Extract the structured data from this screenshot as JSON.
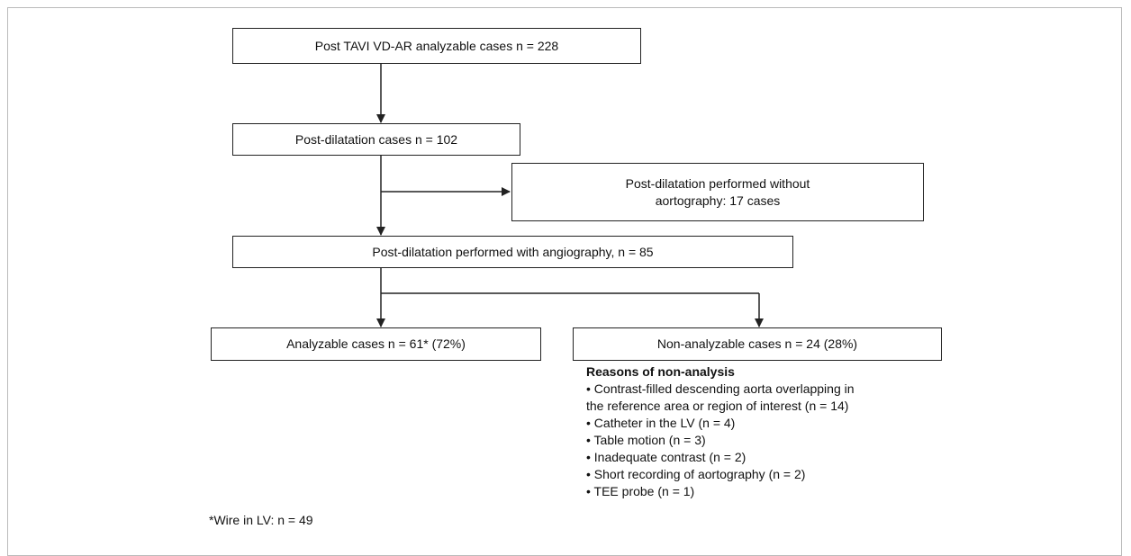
{
  "nodes": [
    {
      "label": "Post TAVI VD-AR analyzable cases n = 228"
    },
    {
      "label": "Post-dilatation cases n = 102"
    },
    {
      "lines": [
        "Post-dilatation performed without",
        "aortography: 17 cases"
      ]
    },
    {
      "label": "Post-dilatation performed with angiography, n = 85"
    },
    {
      "label": "Analyzable cases n = 61* (72%)"
    },
    {
      "label": "Non-analyzable cases n = 24 (28%)"
    }
  ],
  "reasons": {
    "title": "Reasons of non-analysis",
    "items": [
      [
        "• Contrast-filled descending aorta overlapping in",
        "the reference area or region of interest (n = 14)"
      ],
      [
        "• Catheter in the LV (n = 4)"
      ],
      [
        "• Table motion (n = 3)"
      ],
      [
        "• Inadequate contrast (n = 2)"
      ],
      [
        "• Short recording of aortography (n = 2)"
      ],
      [
        "• TEE probe (n = 1)"
      ]
    ]
  },
  "footnote": "*Wire in LV: n = 49"
}
